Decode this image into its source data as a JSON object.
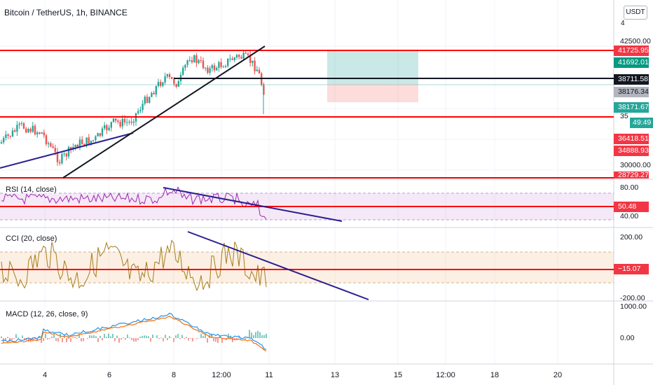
{
  "header": {
    "symbol_title": "Bitcoin / TetherUS, 1h, BINANCE",
    "currency_button": "USDT",
    "axis_top_fragment": "4"
  },
  "panes": {
    "rsi": {
      "label": "RSI (14, close)",
      "axis": [
        "80.00",
        "40.00"
      ],
      "value_tag": "50.48"
    },
    "cci": {
      "label": "CCI (20, close)",
      "axis": [
        "200.00",
        "-200.00"
      ],
      "value_tag": "−15.07"
    },
    "macd": {
      "label": "MACD (12, 26, close, 9)",
      "axis": [
        "1000.00",
        "0.00"
      ]
    }
  },
  "price_axis": {
    "labels": [
      "42500.00",
      "30000.00"
    ],
    "tags": {
      "t41725": "41725.95",
      "t41692": "41692.01",
      "t38711": "38711.58",
      "t38176": "38176.34",
      "t38171": "38171.67",
      "countdown": "49:49",
      "t36418": "36418.51",
      "t34888": "34888.93",
      "t28729": "28729.27",
      "t35": "35"
    }
  },
  "time_axis": [
    "4",
    "6",
    "8",
    "12:00",
    "11",
    "13",
    "15",
    "12:00",
    "18",
    "20"
  ],
  "colors": {
    "up": "#26a69a",
    "down": "#ef5350",
    "level_line": "#ff0000",
    "trendline": "#2a1f8f",
    "rsi_line": "#9c27b0",
    "cci_line": "#a67c1a",
    "macd_line": "#2196f3",
    "signal_line": "#ff6d00"
  },
  "chart_data": {
    "type": "candlestick",
    "series": [
      {
        "name": "Bitcoin / TetherUS, 1h, BINANCE"
      },
      {
        "name": "RSI (14, close)"
      },
      {
        "name": "CCI (20, close)"
      },
      {
        "name": "MACD (12, 26, close, 9)"
      }
    ],
    "horizontal_levels": [
      41725.95,
      38711.58,
      36418.51,
      28729.27
    ],
    "last_price": 38171.67,
    "position_box": {
      "entry": 38176.34,
      "target": 41692.01,
      "stop": 36418.51
    }
  }
}
